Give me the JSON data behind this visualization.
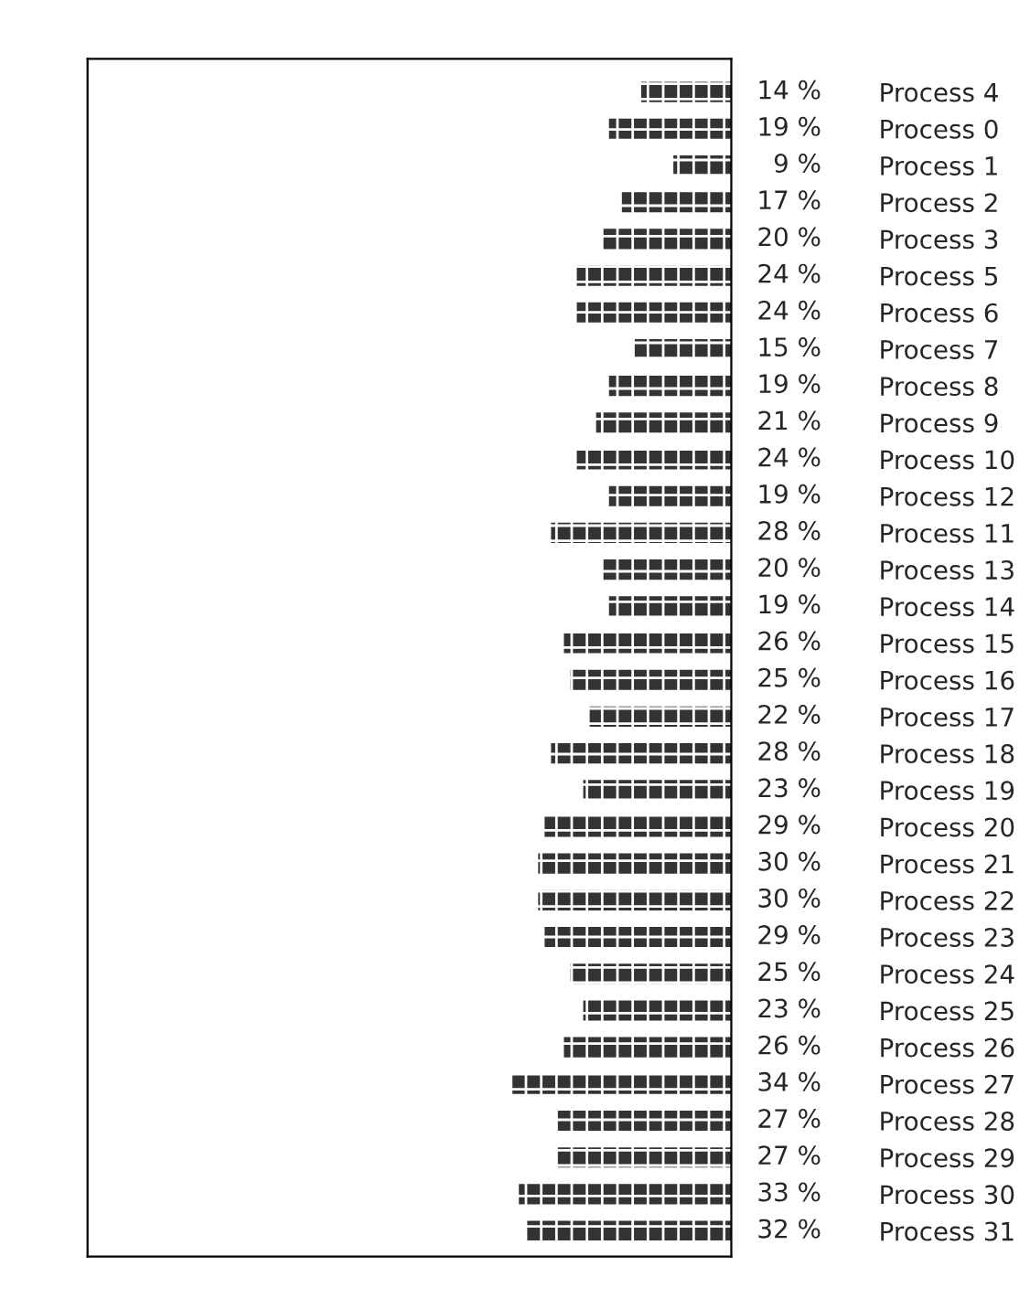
{
  "chart_data": {
    "type": "bar",
    "orientation": "horizontal",
    "categories": [
      "Process 4",
      "Process 0",
      "Process 1",
      "Process 2",
      "Process 3",
      "Process 5",
      "Process 6",
      "Process 7",
      "Process 8",
      "Process 9",
      "Process 10",
      "Process 12",
      "Process 11",
      "Process 13",
      "Process 14",
      "Process 15",
      "Process 16",
      "Process 17",
      "Process 18",
      "Process 19",
      "Process 20",
      "Process 21",
      "Process 22",
      "Process 23",
      "Process 24",
      "Process 25",
      "Process 26",
      "Process 27",
      "Process 28",
      "Process 29",
      "Process 30",
      "Process 31"
    ],
    "values": [
      14,
      19,
      9,
      17,
      20,
      24,
      24,
      15,
      19,
      21,
      24,
      19,
      28,
      20,
      19,
      26,
      25,
      22,
      28,
      23,
      29,
      30,
      30,
      29,
      25,
      23,
      26,
      34,
      27,
      27,
      33,
      32
    ],
    "value_labels": [
      "14 %",
      "19 %",
      "9 %",
      "17 %",
      "20 %",
      "24 %",
      "24 %",
      "15 %",
      "19 %",
      "21 %",
      "24 %",
      "19 %",
      "28 %",
      "20 %",
      "19 %",
      "26 %",
      "25 %",
      "22 %",
      "28 %",
      "23 %",
      "29 %",
      "30 %",
      "30 %",
      "29 %",
      "25 %",
      "23 %",
      "26 %",
      "34 %",
      "27 %",
      "27 %",
      "33 %",
      "32 %"
    ],
    "color": "#333333",
    "xlim": [
      100,
      0
    ],
    "grid": false,
    "legend": false
  }
}
